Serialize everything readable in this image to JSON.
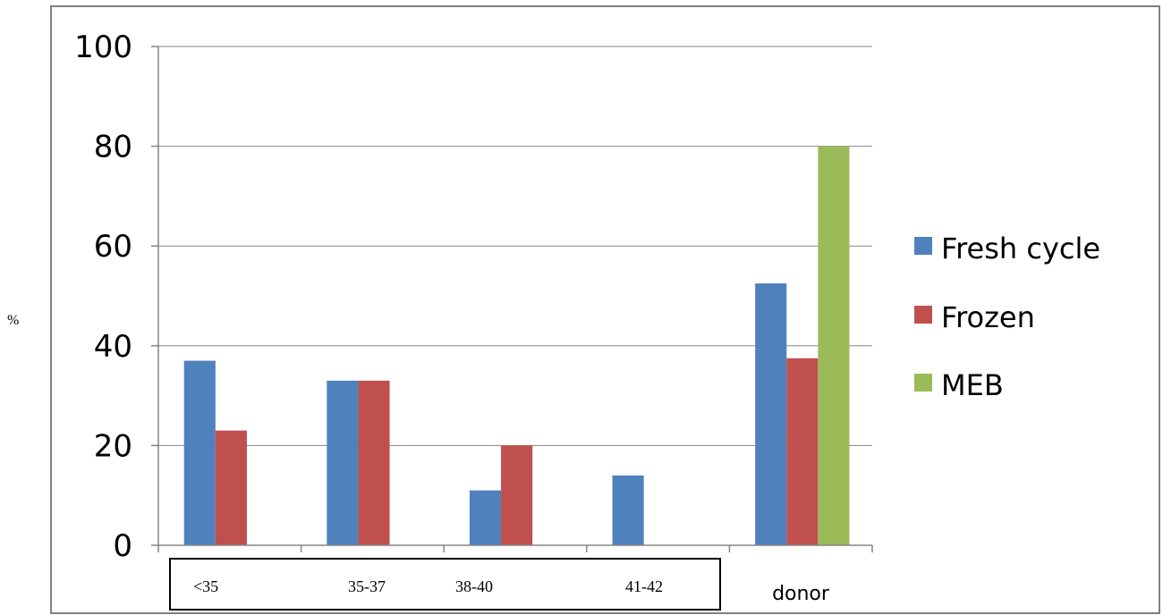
{
  "chart_data": {
    "type": "bar",
    "categories": [
      "<35",
      "35-37",
      "38-40",
      "41-42",
      "donor"
    ],
    "series": [
      {
        "name": "Fresh cycle",
        "color": "#4f81bd",
        "values": [
          37,
          33,
          11,
          14,
          52.5
        ]
      },
      {
        "name": "Frozen",
        "color": "#c0504d",
        "values": [
          23,
          33,
          20,
          null,
          37.5
        ]
      },
      {
        "name": "MEB",
        "color": "#9bbb59",
        "values": [
          null,
          null,
          null,
          null,
          80
        ]
      }
    ],
    "title": "",
    "xlabel": "",
    "ylabel": "%",
    "ylim": [
      0,
      100
    ],
    "yticks": [
      0,
      20,
      40,
      60,
      80,
      100
    ],
    "grid": true,
    "legend_position": "right"
  }
}
